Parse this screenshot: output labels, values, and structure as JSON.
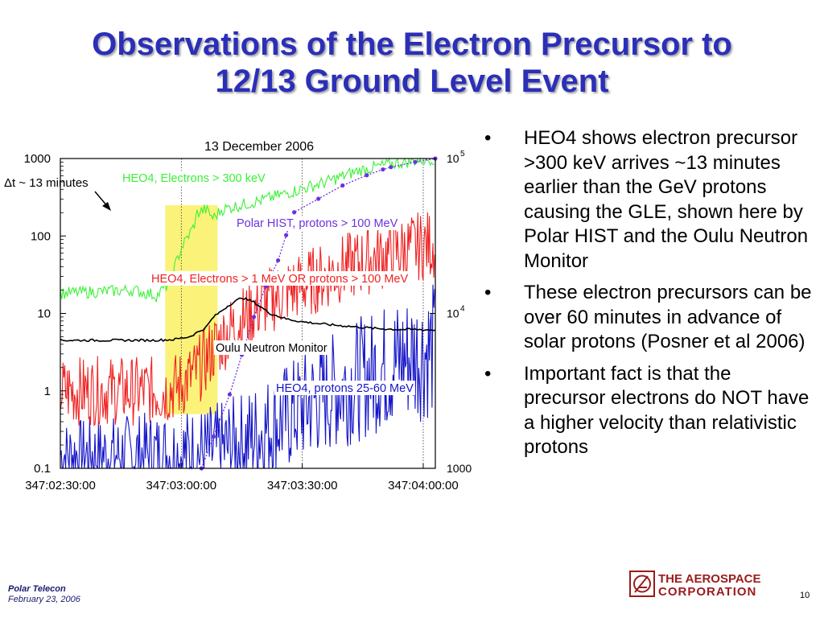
{
  "slide": {
    "title_line1": "Observations of the Electron Precursor to",
    "title_line2": "12/13 Ground Level Event",
    "bullets": [
      "HEO4 shows electron precursor >300 keV arrives ~13 minutes earlier than the GeV protons causing the GLE, shown here by Polar HIST and the Oulu Neutron Monitor",
      "These electron precursors can be over 60 minutes in advance of solar protons (Posner et al 2006)",
      "Important fact is that the precursor electrons do NOT have a higher velocity than relativistic protons"
    ],
    "bullet_glyph": "•",
    "footer": {
      "line1": "Polar Telecon",
      "line2": "February 23, 2006"
    },
    "logo": {
      "line1": "THE AEROSPACE",
      "line2": "CORPORATION"
    },
    "page_number": "10",
    "colors": {
      "title": "#2b2fb8",
      "logo": "#9b1b1b"
    }
  },
  "chart_data": {
    "type": "line",
    "title": "13 December 2006",
    "x_ticks": [
      "347:02:30:00",
      "347:03:00:00",
      "347:03:30:00",
      "347:04:00:00"
    ],
    "x_minutes": [
      -18,
      75
    ],
    "y_left": {
      "scale": "log",
      "ylim": [
        0.1,
        1000
      ],
      "ticks": [
        "0.1",
        "1",
        "10",
        "100",
        "1000"
      ]
    },
    "y_right": {
      "scale": "log",
      "ylim": [
        1000,
        100000
      ],
      "ticks": [
        "1000",
        "10",
        "10"
      ],
      "tick_exponents": [
        "",
        "4",
        "5"
      ]
    },
    "grid": "dotted vertical",
    "shaded_interval_minutes": [
      8,
      21
    ],
    "shaded_color": "#fbf27a",
    "annotation": {
      "delta": "Δt ~ 13 minutes"
    },
    "series": [
      {
        "name": "HEO4, Electrons > 300 keV",
        "color": "#3bf037",
        "axis": "left",
        "x": [
          -20,
          0,
          6,
          9,
          12,
          15,
          16,
          18,
          20,
          22,
          26,
          32,
          40,
          48,
          56,
          64,
          70,
          75
        ],
        "y": [
          18,
          20,
          17,
          25,
          70,
          130,
          200,
          220,
          170,
          220,
          245,
          290,
          380,
          500,
          700,
          850,
          940,
          1000
        ]
      },
      {
        "name": "Polar HIST, protons > 100 MeV",
        "color": "#6b32e0",
        "axis": "right",
        "x": [
          17,
          20,
          24,
          27,
          30,
          33,
          36,
          38,
          40,
          46,
          52,
          58,
          62,
          64,
          70,
          75
        ],
        "y": [
          1000,
          1600,
          3000,
          5400,
          9500,
          15000,
          22000,
          32000,
          45000,
          55000,
          67000,
          78000,
          85000,
          88000,
          95000,
          100000
        ]
      },
      {
        "name": "HEO4, Electrons > 1 MeV OR protons > 100 MeV",
        "color": "#f02222",
        "axis": "left",
        "x": [
          -20,
          0,
          8,
          12,
          16,
          20,
          24,
          28,
          32,
          36,
          40,
          46,
          52,
          58,
          64,
          70,
          75
        ],
        "y": [
          1,
          1,
          1,
          1.2,
          1.8,
          3.5,
          6,
          9,
          13,
          17,
          21,
          28,
          38,
          48,
          60,
          72,
          80
        ]
      },
      {
        "name": "Oulu Neutron Monitor",
        "color": "#000000",
        "axis": "left",
        "x": [
          -20,
          5,
          10,
          14,
          18,
          20,
          24,
          27,
          30,
          34,
          38,
          42,
          48,
          54,
          60,
          66,
          70,
          75
        ],
        "y": [
          4.5,
          4.5,
          4.6,
          5,
          6.5,
          9,
          13,
          16,
          14,
          10,
          8.5,
          7.8,
          7.2,
          6.8,
          6.4,
          6.2,
          6.2,
          6.1
        ]
      },
      {
        "name": "HEO4, protons 25-60 MeV",
        "color": "#1414c8",
        "axis": "left",
        "x": [
          -20,
          10,
          20,
          26,
          32,
          38,
          44,
          50,
          56,
          62,
          68,
          75
        ],
        "y": [
          0.15,
          0.15,
          0.16,
          0.2,
          0.3,
          0.45,
          0.7,
          1.0,
          1.4,
          2.0,
          2.7,
          3.5
        ]
      }
    ]
  }
}
